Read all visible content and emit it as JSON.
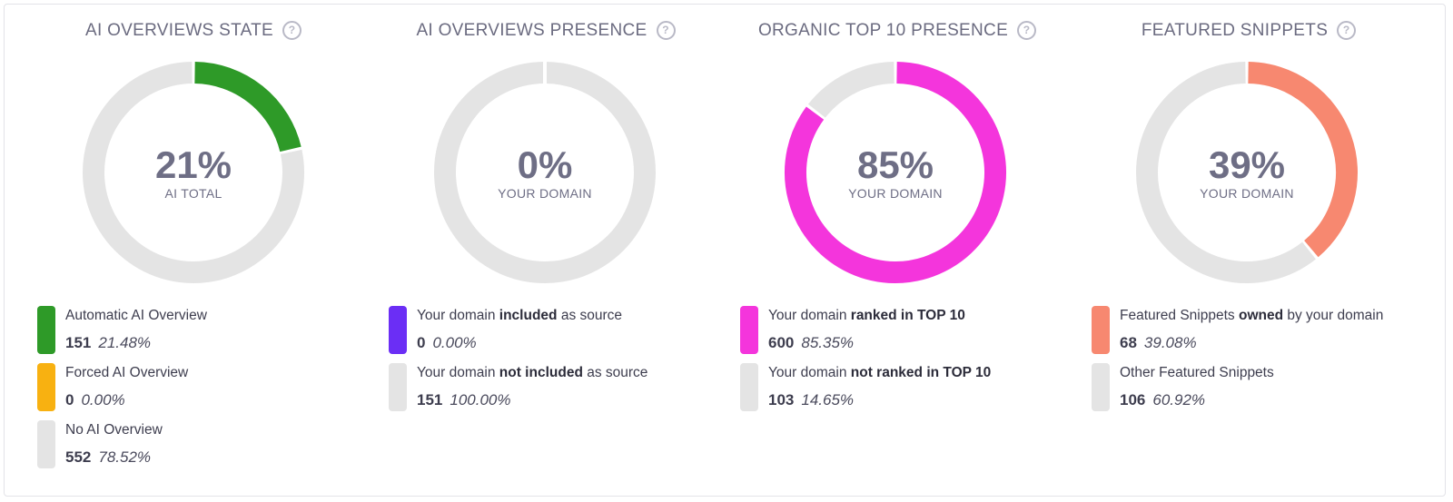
{
  "chart_data": [
    {
      "type": "pie",
      "title": "AI OVERVIEWS STATE",
      "center_value": "21%",
      "center_label": "AI TOTAL",
      "series": [
        {
          "label_pre": "Automatic AI Overview",
          "label_bold": "",
          "label_post": "",
          "count": "151",
          "pct": "21.48%",
          "value": 151,
          "color": "#2e9a28"
        },
        {
          "label_pre": "Forced AI Overview",
          "label_bold": "",
          "label_post": "",
          "count": "0",
          "pct": "0.00%",
          "value": 0,
          "color": "#f8b111"
        },
        {
          "label_pre": "No AI Overview",
          "label_bold": "",
          "label_post": "",
          "count": "552",
          "pct": "78.52%",
          "value": 552,
          "color": "#e4e4e4"
        }
      ]
    },
    {
      "type": "pie",
      "title": "AI OVERVIEWS PRESENCE",
      "center_value": "0%",
      "center_label": "YOUR DOMAIN",
      "series": [
        {
          "label_pre": "Your domain ",
          "label_bold": "included",
          "label_post": " as source",
          "count": "0",
          "pct": "0.00%",
          "value": 0,
          "color": "#6b2ef5"
        },
        {
          "label_pre": "Your domain ",
          "label_bold": "not included",
          "label_post": " as source",
          "count": "151",
          "pct": "100.00%",
          "value": 151,
          "color": "#e4e4e4"
        }
      ]
    },
    {
      "type": "pie",
      "title": "ORGANIC TOP 10 PRESENCE",
      "center_value": "85%",
      "center_label": "YOUR DOMAIN",
      "series": [
        {
          "label_pre": "Your domain ",
          "label_bold": "ranked in TOP 10",
          "label_post": "",
          "count": "600",
          "pct": "85.35%",
          "value": 600,
          "color": "#f435dc"
        },
        {
          "label_pre": "Your domain ",
          "label_bold": "not ranked in TOP 10",
          "label_post": "",
          "count": "103",
          "pct": "14.65%",
          "value": 103,
          "color": "#e4e4e4"
        }
      ]
    },
    {
      "type": "pie",
      "title": "FEATURED SNIPPETS",
      "center_value": "39%",
      "center_label": "YOUR DOMAIN",
      "series": [
        {
          "label_pre": "Featured Snippets ",
          "label_bold": "owned",
          "label_post": " by your domain",
          "count": "68",
          "pct": "39.08%",
          "value": 68,
          "color": "#f78870"
        },
        {
          "label_pre": "Other Featured Snippets",
          "label_bold": "",
          "label_post": "",
          "count": "106",
          "pct": "60.92%",
          "value": 106,
          "color": "#e4e4e4"
        }
      ]
    }
  ]
}
